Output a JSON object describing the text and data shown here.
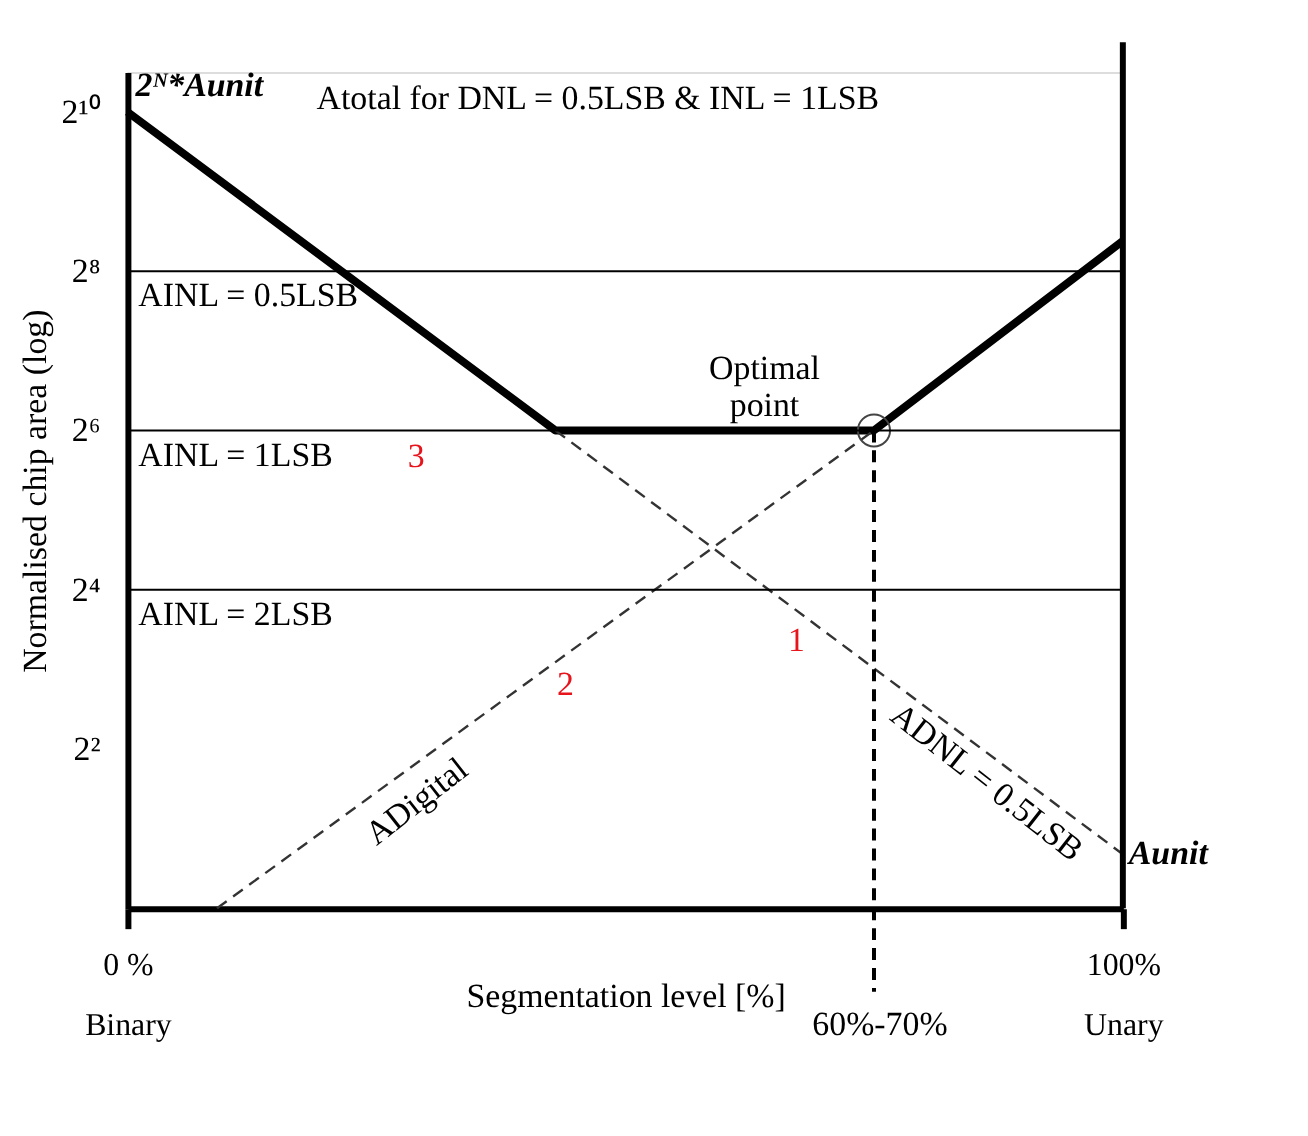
{
  "chart_data": {
    "type": "line",
    "xlabel": "Segmentation level [%]",
    "ylabel": "Normalised chip area (log)",
    "log": "y",
    "grid": false,
    "xlim": [
      0,
      100
    ],
    "xticks": [
      {
        "value": 0,
        "label": "0 %\nBinary"
      },
      {
        "value": 100,
        "label": "100%\nUnary"
      }
    ],
    "ylim": [
      1,
      1448
    ],
    "yticks": [
      {
        "value": 4,
        "label": "2²"
      },
      {
        "value": 16,
        "label": "2⁴"
      },
      {
        "value": 64,
        "label": "2⁶"
      },
      {
        "value": 256,
        "label": "2⁸"
      },
      {
        "value": 1024,
        "label": "2¹⁰"
      }
    ],
    "series": [
      {
        "color": "#000000",
        "line_style": "solid",
        "x": [
          0,
          43,
          75,
          100
        ],
        "values": [
          1024,
          64,
          64,
          333
        ]
      },
      {
        "color": "#333333",
        "line_style": "dashed",
        "x": [
          43,
          100
        ],
        "values": [
          64,
          1.6
        ]
      },
      {
        "color": "#333333",
        "line_style": "dashed",
        "x": [
          9,
          75
        ],
        "values": [
          1,
          64
        ]
      },
      {
        "type": "scatter",
        "marker": "circle",
        "color": "#444444",
        "x": [
          75
        ],
        "values": [
          64
        ]
      }
    ],
    "ref_lines": [
      {
        "axis": "y",
        "value": 256,
        "color": "#000000",
        "line_style": "solid"
      },
      {
        "axis": "y",
        "value": 64,
        "color": "#000000",
        "line_style": "solid"
      },
      {
        "axis": "y",
        "value": 16,
        "color": "#000000",
        "line_style": "solid"
      },
      {
        "axis": "x",
        "value": 100,
        "color": "#000000",
        "line_style": "solid"
      },
      {
        "axis": "x",
        "value": 75,
        "color": "#000000",
        "line_style": "dashed"
      }
    ],
    "annotations": [
      {
        "text": "2ᴺ*Aunit",
        "x": 0,
        "y": 1024
      },
      {
        "text": "Optimal\npoint",
        "x": 75,
        "y": 64
      },
      {
        "text": "Aunit",
        "x": 100,
        "y": 1.6
      },
      "Atotal  for DNL = 0.5LSB & INL =  1LSB",
      "ADigital",
      "ADNL = 0.5LSB",
      "1",
      "2",
      "3",
      "60%-70%",
      "AINL = 0.5LSB",
      "AINL = 1LSB",
      "AINL = 2LSB"
    ]
  }
}
